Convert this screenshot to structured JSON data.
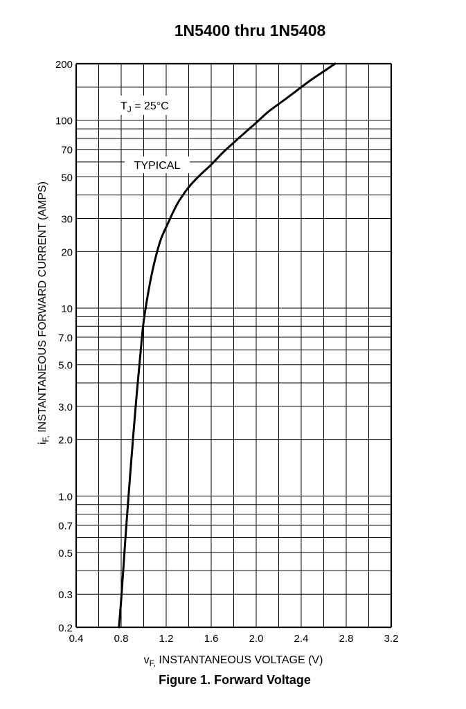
{
  "chart_data": {
    "type": "line",
    "title": "1N5400 thru 1N5408",
    "caption": "Figure 1. Forward Voltage",
    "xlabel": {
      "prefix": "v",
      "sub": "F,",
      "text": " INSTANTANEOUS VOLTAGE (V)"
    },
    "ylabel": {
      "prefix": "i",
      "sub": "F,",
      "text": " INSTANTANEOUS FORWARD CURRENT (AMPS)"
    },
    "xlim": [
      0.4,
      3.2
    ],
    "ylim": [
      0.2,
      200
    ],
    "yscale": "log",
    "grid": true,
    "xticks": [
      0.4,
      0.8,
      1.2,
      1.6,
      2.0,
      2.4,
      2.8,
      3.2
    ],
    "xtick_labels": [
      "0.4",
      "0.8",
      "1.2",
      "1.6",
      "2.0",
      "2.4",
      "2.8",
      "3.2"
    ],
    "yticks": [
      0.2,
      0.3,
      0.5,
      0.7,
      1.0,
      2.0,
      3.0,
      5.0,
      7.0,
      10,
      20,
      30,
      50,
      70,
      100,
      200
    ],
    "ytick_labels": [
      "0.2",
      "0.3",
      "0.5",
      "0.7",
      "1.0",
      "2.0",
      "3.0",
      "5.0",
      "7.0",
      "10",
      "20",
      "30",
      "50",
      "70",
      "100",
      "200"
    ],
    "annotations": {
      "condition": {
        "prefix": "T",
        "sub": "J",
        "text": " = 25°C"
      },
      "curve_label": "TYPICAL"
    },
    "series": [
      {
        "x": [
          0.78,
          0.8,
          0.82,
          0.85,
          0.88,
          0.91,
          0.94,
          0.97,
          1.0,
          1.05,
          1.1,
          1.15,
          1.2,
          1.3,
          1.4,
          1.5,
          1.6,
          1.7,
          1.8,
          1.9,
          2.0,
          2.1,
          2.2,
          2.3,
          2.4,
          2.5,
          2.6,
          2.7
        ],
        "y": [
          0.2,
          0.28,
          0.42,
          0.75,
          1.3,
          2.2,
          3.6,
          5.6,
          8.5,
          13,
          18,
          23,
          27,
          36,
          44,
          51,
          58,
          67,
          76,
          86,
          97,
          110,
          122,
          135,
          150,
          166,
          182,
          200
        ]
      }
    ]
  }
}
